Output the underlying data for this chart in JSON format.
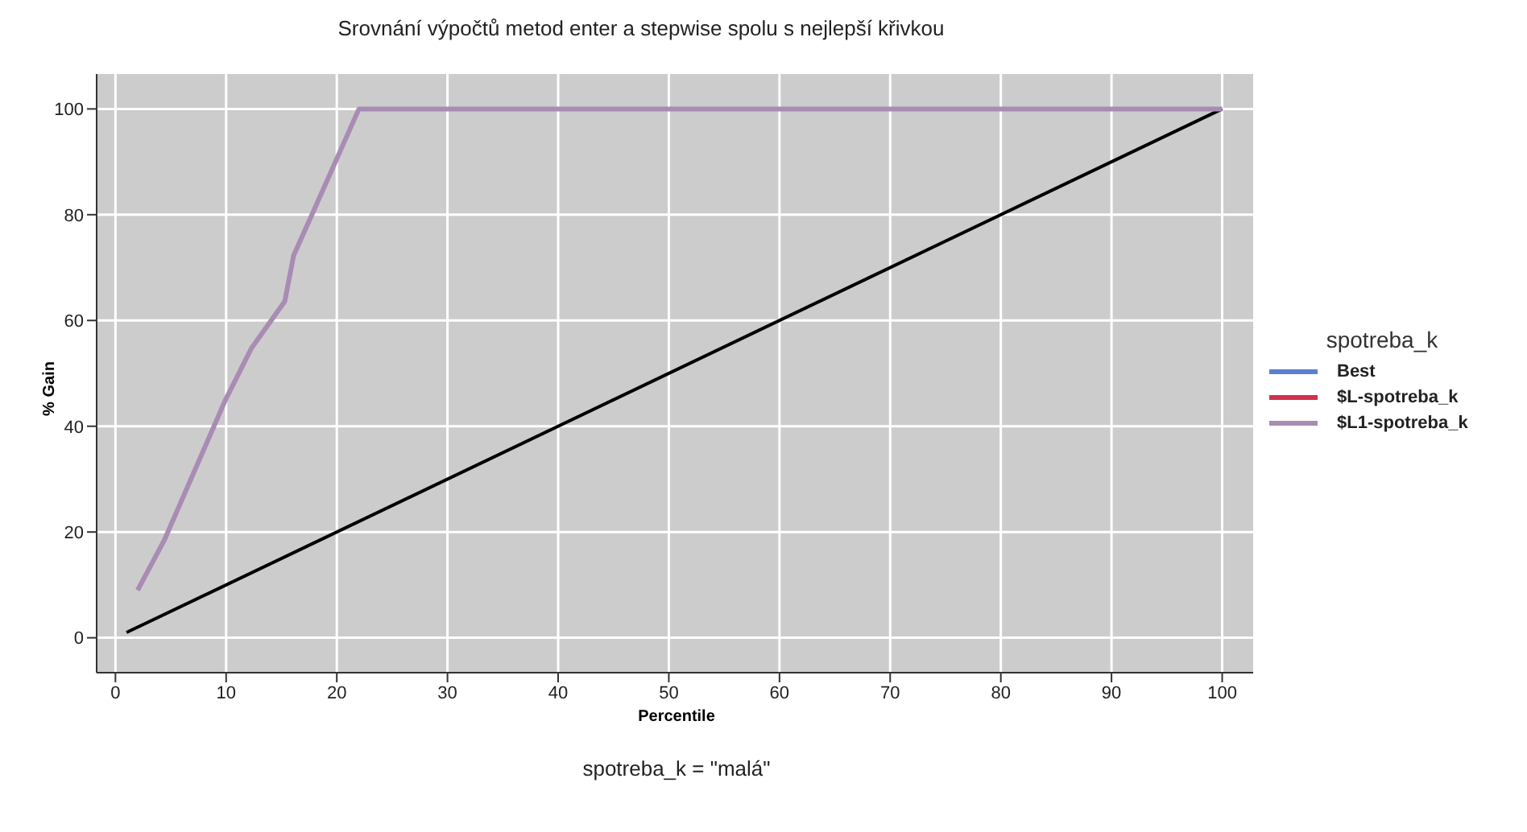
{
  "chart_data": {
    "type": "line",
    "title": "Srovnání výpočtů metod enter a stepwise spolu s nejlepší křivkou",
    "xlabel": "Percentile",
    "ylabel": "% Gain",
    "legend_title": "spotreba_k",
    "annotations": [
      "spotreba_k = \"malá\""
    ],
    "xlim": [
      -1.7,
      102.8
    ],
    "ylim": [
      -6.6,
      106.6
    ],
    "xticks": [
      0,
      10,
      20,
      30,
      40,
      50,
      60,
      70,
      80,
      90,
      100
    ],
    "yticks": [
      0,
      20,
      40,
      60,
      80,
      100
    ],
    "grid": true,
    "legend": "right",
    "marker": "none",
    "line_style": "solid",
    "series": [
      {
        "color": "#000000",
        "x": [
          1,
          100
        ],
        "values": [
          1,
          100
        ]
      },
      {
        "name": "Best",
        "color": "#5b7fd0"
      },
      {
        "name": "$L-spotreba_k",
        "color": "#d0304a"
      },
      {
        "name": "$L1-spotreba_k",
        "color": "#a88cb4",
        "x": [
          2,
          4.4,
          9.9,
          12.3,
          15.3,
          16.1,
          17.9,
          22,
          100
        ],
        "values": [
          9,
          18.4,
          44.8,
          54.8,
          63.6,
          72.3,
          80.7,
          100,
          100
        ]
      }
    ]
  }
}
